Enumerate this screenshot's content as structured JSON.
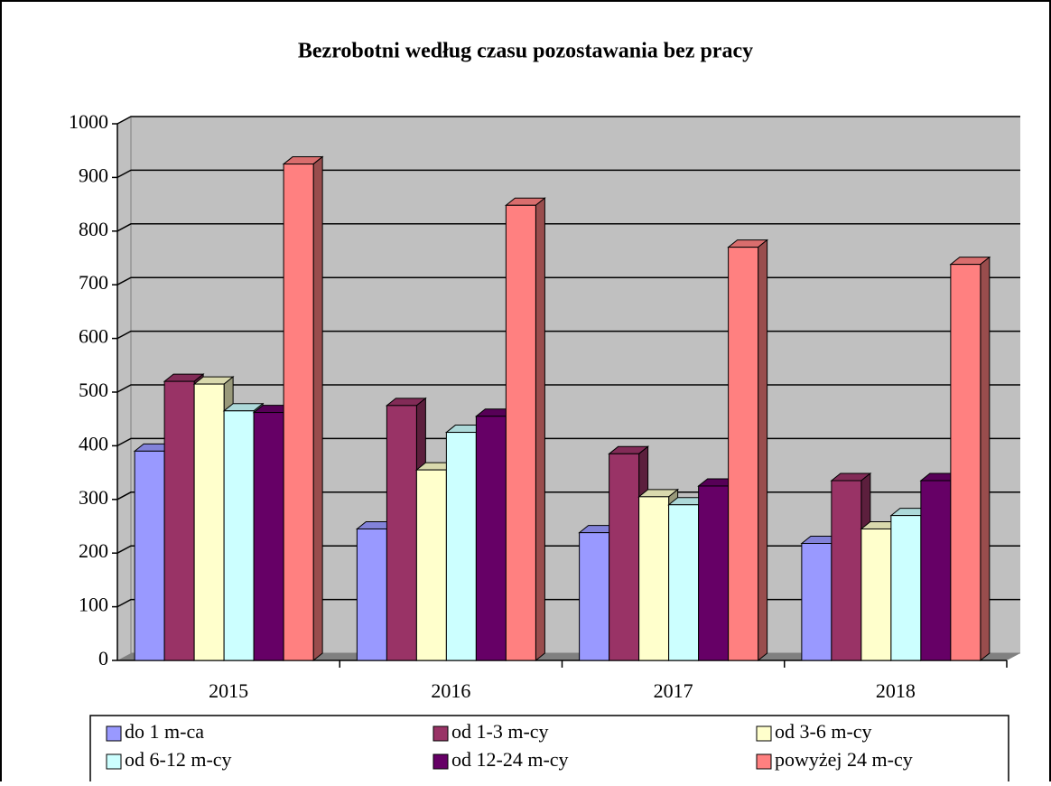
{
  "chart_data": {
    "type": "bar3d",
    "title": "Bezrobotni według czasu pozostawania bez pracy",
    "categories": [
      "2015",
      "2016",
      "2017",
      "2018"
    ],
    "series": [
      {
        "name": "do 1 m-ca",
        "color": "#9999ff",
        "values": [
          390,
          245,
          238,
          218
        ]
      },
      {
        "name": "od 1-3 m-cy",
        "color": "#993366",
        "values": [
          520,
          475,
          385,
          335
        ]
      },
      {
        "name": "od 3-6 m-cy",
        "color": "#ffffcc",
        "values": [
          515,
          355,
          305,
          245
        ]
      },
      {
        "name": "od 6-12 m-cy",
        "color": "#ccffff",
        "values": [
          465,
          425,
          290,
          270
        ]
      },
      {
        "name": "od 12-24 m-cy",
        "color": "#660066",
        "values": [
          462,
          455,
          325,
          335
        ]
      },
      {
        "name": "powyżej 24 m-cy",
        "color": "#ff8080",
        "values": [
          925,
          848,
          770,
          738
        ]
      }
    ],
    "ylim": [
      0,
      1000
    ],
    "yticks": [
      0,
      100,
      200,
      300,
      400,
      500,
      600,
      700,
      800,
      900,
      1000
    ],
    "grid": true
  }
}
